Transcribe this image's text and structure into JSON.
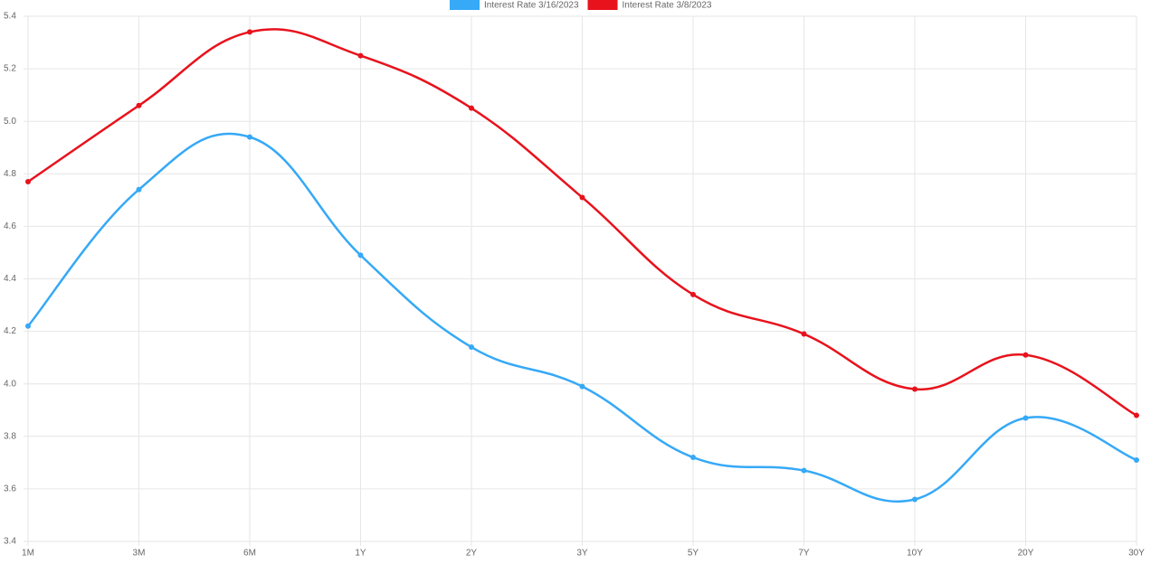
{
  "chart_data": {
    "type": "line",
    "categories": [
      "1M",
      "3M",
      "6M",
      "1Y",
      "2Y",
      "3Y",
      "5Y",
      "7Y",
      "10Y",
      "20Y",
      "30Y"
    ],
    "series": [
      {
        "name": "Interest Rate 3/16/2023",
        "color": "#36a9f7",
        "values": [
          4.22,
          4.74,
          4.94,
          4.49,
          4.14,
          3.99,
          3.72,
          3.67,
          3.56,
          3.87,
          3.71
        ]
      },
      {
        "name": "Interest Rate 3/8/2023",
        "color": "#e8121c",
        "values": [
          4.77,
          5.06,
          5.34,
          5.25,
          5.05,
          4.71,
          4.34,
          4.19,
          3.98,
          4.11,
          3.88
        ]
      }
    ],
    "ylim": [
      3.4,
      5.4
    ],
    "yticks": [
      3.4,
      3.6,
      3.8,
      {
        "value": 4,
        "label": "4.0"
      },
      4.2,
      4.4,
      4.6,
      4.8,
      {
        "value": 5,
        "label": "5.0"
      },
      5.2,
      5.4
    ],
    "grid": true,
    "legend": "top"
  }
}
